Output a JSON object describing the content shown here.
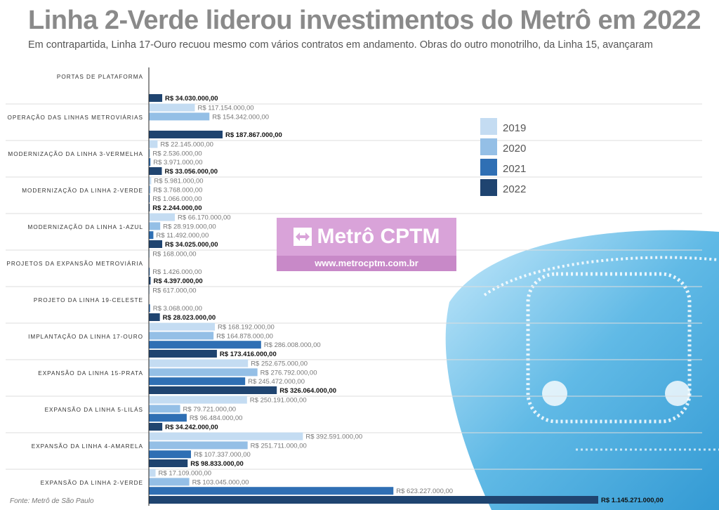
{
  "title": "Linha 2-Verde liderou investimentos do Metrô em 2022",
  "subtitle": "Em contrapartida, Linha 17-Ouro recuou mesmo com vários contratos em andamento. Obras do outro monotrilho, da Linha 15, avançaram",
  "source": "Fonte: Metrô de São Paulo",
  "watermark": {
    "brand": "Metrô CPTM",
    "url": "www.metrocptm.com.br"
  },
  "colors": {
    "2019": "#c4dcf2",
    "2020": "#94bfe6",
    "2021": "#2f6fb4",
    "2022": "#1f4470",
    "photo": "#3fa7dc"
  },
  "chart_data": {
    "type": "bar",
    "orientation": "horizontal",
    "title": "Linha 2-Verde liderou investimentos do Metrô em 2022",
    "legend_position": "right",
    "series_names": [
      "2019",
      "2020",
      "2021",
      "2022"
    ],
    "categories": [
      {
        "name": "PORTAS DE PLATAFORMA",
        "bars": [
          {
            "series": "2022",
            "value": 34030000,
            "label": "R$ 34.030.000,00"
          }
        ]
      },
      {
        "name": "OPERAÇÃO DAS LINHAS METROVIÁRIAS",
        "bars": [
          {
            "series": "2019",
            "value": 117154000,
            "label": "R$ 117.154.000,00"
          },
          {
            "series": "2020",
            "value": 154342000,
            "label": "R$ 154.342.000,00"
          },
          {
            "series": "2022",
            "value": 187867000,
            "label": "R$ 187.867.000,00"
          }
        ]
      },
      {
        "name": "MODERNIZAÇÃO DA LINHA 3-VERMELHA",
        "bars": [
          {
            "series": "2019",
            "value": 22145000,
            "label": "R$ 22.145.000,00"
          },
          {
            "series": "2020",
            "value": 2536000,
            "label": "R$ 2.536.000,00"
          },
          {
            "series": "2021",
            "value": 3971000,
            "label": "R$ 3.971.000,00"
          },
          {
            "series": "2022",
            "value": 33056000,
            "label": "R$ 33.056.000,00"
          }
        ]
      },
      {
        "name": "MODERNIZAÇÃO DA LINHA 2-VERDE",
        "bars": [
          {
            "series": "2019",
            "value": 5981000,
            "label": "R$ 5.981.000,00"
          },
          {
            "series": "2020",
            "value": 3768000,
            "label": "R$ 3.768.000,00"
          },
          {
            "series": "2021",
            "value": 1066000,
            "label": "R$ 1.066.000,00"
          },
          {
            "series": "2022",
            "value": 2244000,
            "label": "R$ 2.244.000,00"
          }
        ]
      },
      {
        "name": "MODERNIZAÇÃO DA LINHA 1-AZUL",
        "bars": [
          {
            "series": "2019",
            "value": 66170000,
            "label": "R$ 66.170.000,00"
          },
          {
            "series": "2020",
            "value": 28919000,
            "label": "R$ 28.919.000,00"
          },
          {
            "series": "2021",
            "value": 11492000,
            "label": "R$ 11.492.000,00"
          },
          {
            "series": "2022",
            "value": 34025000,
            "label": "R$ 34.025.000,00"
          }
        ]
      },
      {
        "name": "PROJETOS DA EXPANSÃO METROVIÁRIA",
        "bars": [
          {
            "series": "2019",
            "value": 168000,
            "label": "R$ 168.000,00"
          },
          {
            "series": "2021",
            "value": 1426000,
            "label": "R$ 1.426.000,00"
          },
          {
            "series": "2022",
            "value": 4397000,
            "label": "R$ 4.397.000,00"
          }
        ]
      },
      {
        "name": "PROJETO DA LINHA 19-CELESTE",
        "bars": [
          {
            "series": "2019",
            "value": 617000,
            "label": "R$ 617.000,00"
          },
          {
            "series": "2021",
            "value": 3068000,
            "label": "R$ 3.068.000,00"
          },
          {
            "series": "2022",
            "value": 28023000,
            "label": "R$ 28.023.000,00"
          }
        ]
      },
      {
        "name": "IMPLANTAÇÃO DA LINHA 17-OURO",
        "bars": [
          {
            "series": "2019",
            "value": 168192000,
            "label": "R$ 168.192.000,00"
          },
          {
            "series": "2020",
            "value": 164878000,
            "label": "R$ 164.878.000,00"
          },
          {
            "series": "2021",
            "value": 286008000,
            "label": "R$ 286.008.000,00"
          },
          {
            "series": "2022",
            "value": 173416000,
            "label": "R$ 173.416.000,00"
          }
        ]
      },
      {
        "name": "EXPANSÃO DA LINHA 15-PRATA",
        "bars": [
          {
            "series": "2019",
            "value": 252675000,
            "label": "R$ 252.675.000,00"
          },
          {
            "series": "2020",
            "value": 276792000,
            "label": "R$ 276.792.000,00"
          },
          {
            "series": "2021",
            "value": 245472000,
            "label": "R$ 245.472.000,00"
          },
          {
            "series": "2022",
            "value": 326064000,
            "label": "R$ 326.064.000,00"
          }
        ]
      },
      {
        "name": "EXPANSÃO DA LINHA 5-LILÁS",
        "bars": [
          {
            "series": "2019",
            "value": 250191000,
            "label": "R$ 250.191.000,00"
          },
          {
            "series": "2020",
            "value": 79721000,
            "label": "R$ 79.721.000,00"
          },
          {
            "series": "2021",
            "value": 96484000,
            "label": "R$ 96.484.000,00"
          },
          {
            "series": "2022",
            "value": 34242000,
            "label": "R$ 34.242.000,00"
          }
        ]
      },
      {
        "name": "EXPANSÃO DA LINHA 4-AMARELA",
        "bars": [
          {
            "series": "2019",
            "value": 392591000,
            "label": "R$ 392.591.000,00"
          },
          {
            "series": "2020",
            "value": 251711000,
            "label": "R$ 251.711.000,00"
          },
          {
            "series": "2021",
            "value": 107337000,
            "label": "R$ 107.337.000,00"
          },
          {
            "series": "2022",
            "value": 98833000,
            "label": "R$ 98.833.000,00"
          }
        ]
      },
      {
        "name": "EXPANSÃO DA LINHA 2-VERDE",
        "bars": [
          {
            "series": "2019",
            "value": 17109000,
            "label": "R$ 17.109.000,00"
          },
          {
            "series": "2020",
            "value": 103045000,
            "label": "R$ 103.045.000,00"
          },
          {
            "series": "2021",
            "value": 623227000,
            "label": "R$ 623.227.000,00"
          },
          {
            "series": "2022",
            "value": 1145271000,
            "label": "R$ 1.145.271.000,00"
          }
        ]
      }
    ]
  }
}
